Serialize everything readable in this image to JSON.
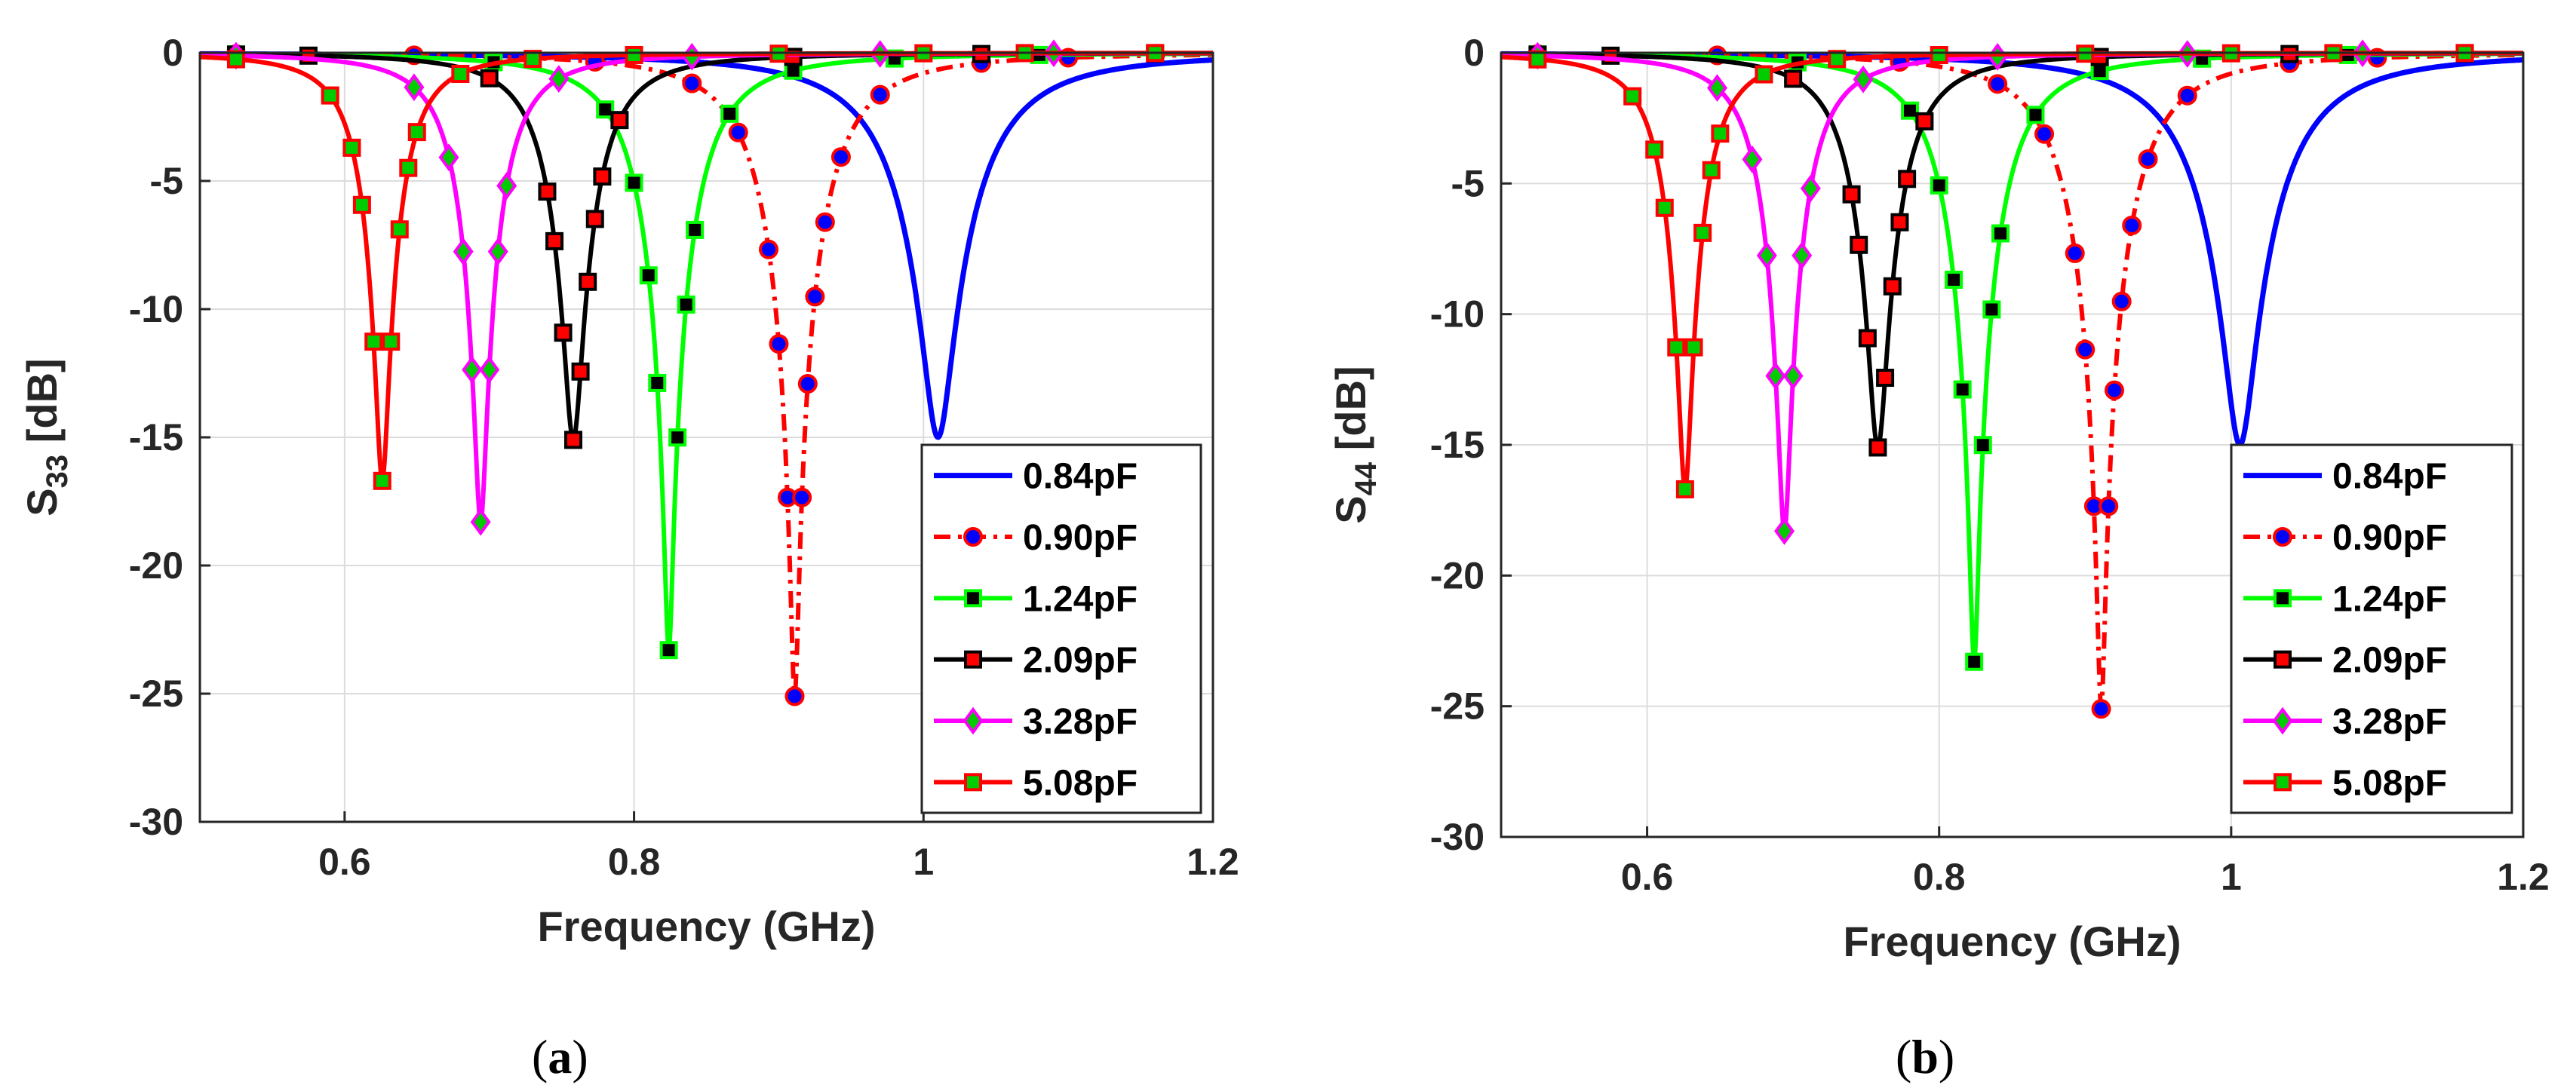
{
  "panels": [
    {
      "id": "a",
      "caption": "a",
      "ylabel_main": "S",
      "ylabel_sub": "33"
    },
    {
      "id": "b",
      "caption": "b",
      "ylabel_main": "S",
      "ylabel_sub": "44"
    }
  ],
  "chart_data": [
    {
      "type": "line",
      "panel": "a",
      "xlabel": "Frequency (GHz)",
      "ylabel": "S33 [dB]",
      "xlim": [
        0.5,
        1.2
      ],
      "ylim": [
        -30,
        0
      ],
      "xticks": [
        0.6,
        0.8,
        1,
        1.2
      ],
      "xtick_labels": [
        "0.6",
        "0.8",
        "1",
        "1.2"
      ],
      "yticks": [
        0,
        -5,
        -10,
        -15,
        -20,
        -25,
        -30
      ],
      "ytick_labels": [
        "0",
        "-5",
        "-10",
        "-15",
        "-20",
        "-25",
        "-30"
      ],
      "grid": true,
      "legend_position": "bottom-right",
      "series": [
        {
          "name": "0.84pF",
          "color": "#0000FF",
          "dash": "solid",
          "marker": "none",
          "f0": 1.01,
          "depth": -15.0,
          "width": 0.05,
          "marker_x": []
        },
        {
          "name": "0.90pF",
          "color": "#FF0000",
          "dash": "dashdot",
          "marker": "circle",
          "marker_fill": "#0000FF",
          "f0": 0.911,
          "depth": -25.1,
          "width": 0.04,
          "marker_x": [
            0.525,
            0.648,
            0.773,
            0.84,
            0.872,
            0.893,
            0.9,
            0.906,
            0.911,
            0.916,
            0.92,
            0.925,
            0.932,
            0.943,
            0.97,
            1.04,
            1.1
          ]
        },
        {
          "name": "1.24pF",
          "color": "#00FF00",
          "dash": "solid",
          "marker": "square",
          "marker_fill": "#000000",
          "f0": 0.824,
          "depth": -23.3,
          "width": 0.036,
          "marker_x": [
            0.525,
            0.703,
            0.78,
            0.8,
            0.81,
            0.816,
            0.824,
            0.83,
            0.836,
            0.842,
            0.866,
            0.91,
            0.98,
            1.08
          ]
        },
        {
          "name": "2.09pF",
          "color": "#000000",
          "dash": "solid",
          "marker": "square",
          "marker_fill": "#FF0000",
          "f0": 0.758,
          "depth": -15.1,
          "width": 0.03,
          "marker_x": [
            0.525,
            0.575,
            0.7,
            0.74,
            0.745,
            0.751,
            0.758,
            0.763,
            0.768,
            0.773,
            0.778,
            0.79,
            0.91,
            1.04,
            1.16
          ]
        },
        {
          "name": "3.28pF",
          "color": "#FF00FF",
          "dash": "solid",
          "marker": "diamond",
          "marker_fill": "#00CC00",
          "f0": 0.694,
          "depth": -18.3,
          "width": 0.028,
          "marker_x": [
            0.525,
            0.648,
            0.672,
            0.682,
            0.688,
            0.694,
            0.7,
            0.706,
            0.712,
            0.748,
            0.84,
            0.97,
            1.09
          ]
        },
        {
          "name": "5.08pF",
          "color": "#FF0000",
          "dash": "solid",
          "marker": "square",
          "marker_fill": "#00CC00",
          "f0": 0.626,
          "depth": -16.7,
          "width": 0.025,
          "marker_x": [
            0.525,
            0.59,
            0.605,
            0.612,
            0.62,
            0.626,
            0.632,
            0.638,
            0.644,
            0.65,
            0.68,
            0.73,
            0.8,
            0.9,
            1.0,
            1.07,
            1.16
          ]
        }
      ]
    },
    {
      "type": "line",
      "panel": "b",
      "xlabel": "Frequency (GHz)",
      "ylabel": "S44 [dB]",
      "xlim": [
        0.5,
        1.2
      ],
      "ylim": [
        -30,
        0
      ],
      "xticks": [
        0.6,
        0.8,
        1,
        1.2
      ],
      "xtick_labels": [
        "0.6",
        "0.8",
        "1",
        "1.2"
      ],
      "yticks": [
        0,
        -5,
        -10,
        -15,
        -20,
        -25,
        -30
      ],
      "ytick_labels": [
        "0",
        "-5",
        "-10",
        "-15",
        "-20",
        "-25",
        "-30"
      ],
      "grid": true,
      "legend_position": "bottom-right",
      "series": [
        {
          "name": "0.84pF",
          "color": "#0000FF",
          "dash": "solid",
          "marker": "none",
          "f0": 1.006,
          "depth": -15.0,
          "width": 0.05,
          "marker_x": []
        },
        {
          "name": "0.90pF",
          "color": "#FF0000",
          "dash": "dashdot",
          "marker": "circle",
          "marker_fill": "#0000FF",
          "f0": 0.911,
          "depth": -25.1,
          "width": 0.04,
          "marker_x": [
            0.525,
            0.648,
            0.773,
            0.84,
            0.872,
            0.893,
            0.9,
            0.906,
            0.911,
            0.916,
            0.92,
            0.925,
            0.932,
            0.943,
            0.97,
            1.04,
            1.1
          ]
        },
        {
          "name": "1.24pF",
          "color": "#00FF00",
          "dash": "solid",
          "marker": "square",
          "marker_fill": "#000000",
          "f0": 0.824,
          "depth": -23.3,
          "width": 0.036,
          "marker_x": [
            0.525,
            0.703,
            0.78,
            0.8,
            0.81,
            0.816,
            0.824,
            0.83,
            0.836,
            0.842,
            0.866,
            0.91,
            0.98,
            1.08
          ]
        },
        {
          "name": "2.09pF",
          "color": "#000000",
          "dash": "solid",
          "marker": "square",
          "marker_fill": "#FF0000",
          "f0": 0.758,
          "depth": -15.1,
          "width": 0.03,
          "marker_x": [
            0.525,
            0.575,
            0.7,
            0.74,
            0.745,
            0.751,
            0.758,
            0.763,
            0.768,
            0.773,
            0.778,
            0.79,
            0.91,
            1.04,
            1.16
          ]
        },
        {
          "name": "3.28pF",
          "color": "#FF00FF",
          "dash": "solid",
          "marker": "diamond",
          "marker_fill": "#00CC00",
          "f0": 0.694,
          "depth": -18.3,
          "width": 0.028,
          "marker_x": [
            0.525,
            0.648,
            0.672,
            0.682,
            0.688,
            0.694,
            0.7,
            0.706,
            0.712,
            0.748,
            0.84,
            0.97,
            1.09
          ]
        },
        {
          "name": "5.08pF",
          "color": "#FF0000",
          "dash": "solid",
          "marker": "square",
          "marker_fill": "#00CC00",
          "f0": 0.626,
          "depth": -16.7,
          "width": 0.025,
          "marker_x": [
            0.525,
            0.59,
            0.605,
            0.612,
            0.62,
            0.626,
            0.632,
            0.638,
            0.644,
            0.65,
            0.68,
            0.73,
            0.8,
            0.9,
            1.0,
            1.07,
            1.16
          ]
        }
      ]
    }
  ]
}
